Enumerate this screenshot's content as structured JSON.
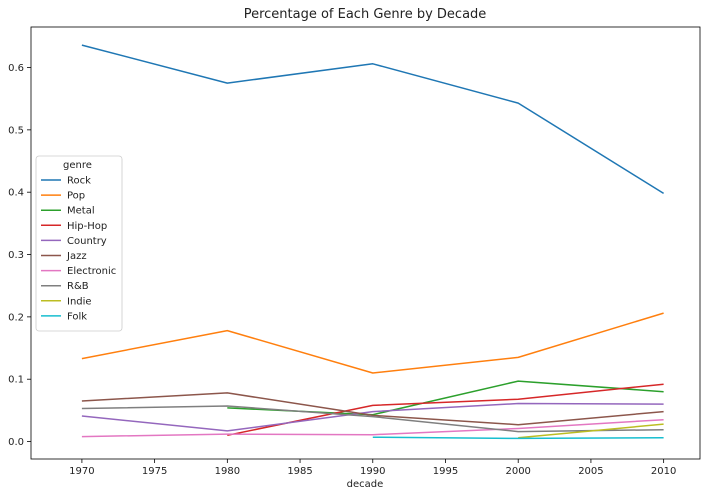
{
  "chart_data": {
    "type": "line",
    "title": "Percentage of Each Genre by Decade",
    "xlabel": "decade",
    "ylabel": "",
    "xlim": [
      1966.5,
      2012.5
    ],
    "ylim": [
      -0.028,
      0.665
    ],
    "xticks": [
      1970,
      1975,
      1980,
      1985,
      1990,
      1995,
      2000,
      2005,
      2010
    ],
    "yticks": [
      0.0,
      0.1,
      0.2,
      0.3,
      0.4,
      0.5,
      0.6
    ],
    "grid": false,
    "legend": {
      "title": "genre",
      "placement": "center-left"
    },
    "series": [
      {
        "name": "Rock",
        "color": "#1f77b4",
        "x": [
          1970,
          1980,
          1990,
          2000,
          2010
        ],
        "y": [
          0.636,
          0.575,
          0.606,
          0.543,
          0.398
        ]
      },
      {
        "name": "Pop",
        "color": "#ff7f0e",
        "x": [
          1970,
          1980,
          1990,
          2000,
          2010
        ],
        "y": [
          0.133,
          0.178,
          0.11,
          0.135,
          0.206
        ]
      },
      {
        "name": "Metal",
        "color": "#2ca02c",
        "x": [
          1980,
          1990,
          2000,
          2010
        ],
        "y": [
          0.054,
          0.043,
          0.097,
          0.08
        ]
      },
      {
        "name": "Hip-Hop",
        "color": "#d62728",
        "x": [
          1980,
          1990,
          2000,
          2010
        ],
        "y": [
          0.01,
          0.058,
          0.068,
          0.092
        ]
      },
      {
        "name": "Country",
        "color": "#9467bd",
        "x": [
          1970,
          1980,
          1990,
          2000,
          2010
        ],
        "y": [
          0.041,
          0.017,
          0.048,
          0.061,
          0.06
        ]
      },
      {
        "name": "Jazz",
        "color": "#8c564b",
        "x": [
          1970,
          1980,
          1990,
          2000,
          2010
        ],
        "y": [
          0.065,
          0.078,
          0.042,
          0.027,
          0.048
        ]
      },
      {
        "name": "Electronic",
        "color": "#e377c2",
        "x": [
          1970,
          1980,
          1990,
          2000,
          2010
        ],
        "y": [
          0.008,
          0.012,
          0.011,
          0.021,
          0.035
        ]
      },
      {
        "name": "R&B",
        "color": "#7f7f7f",
        "x": [
          1970,
          1980,
          1990,
          2000,
          2010
        ],
        "y": [
          0.053,
          0.057,
          0.04,
          0.016,
          0.019
        ]
      },
      {
        "name": "Indie",
        "color": "#bcbd22",
        "x": [
          2000,
          2010
        ],
        "y": [
          0.006,
          0.028
        ]
      },
      {
        "name": "Folk",
        "color": "#17becf",
        "x": [
          1990,
          2000,
          2010
        ],
        "y": [
          0.007,
          0.005,
          0.006
        ]
      }
    ]
  }
}
